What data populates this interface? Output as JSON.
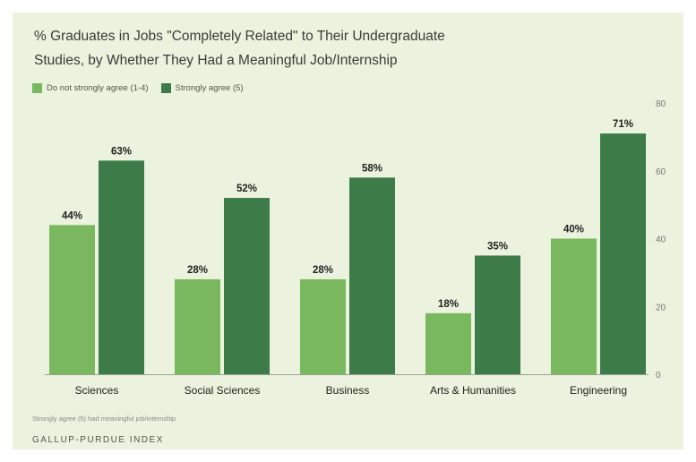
{
  "chart_data": {
    "type": "bar",
    "title_line1": "% Graduates in Jobs \"Completely Related\" to Their Undergraduate",
    "title_line2": "Studies, by Whether They Had a Meaningful Job/Internship",
    "categories": [
      "Sciences",
      "Social Sciences",
      "Business",
      "Arts & Humanities",
      "Engineering"
    ],
    "series": [
      {
        "name": "Do not strongly agree (1-4)",
        "values": [
          44,
          28,
          28,
          18,
          40
        ],
        "color": "#79b85f"
      },
      {
        "name": "Strongly agree (5)",
        "values": [
          63,
          52,
          58,
          35,
          71
        ],
        "color": "#3d7c49"
      }
    ],
    "value_format": "percent",
    "ylim": [
      0,
      80
    ],
    "yticks": [
      0,
      20,
      40,
      60,
      80
    ],
    "y_axis_side": "right",
    "grid": false,
    "legend_position": "top-left",
    "footnote": "Strongly agree (5) had meaningful job/internship",
    "source": "GALLUP-PURDUE INDEX"
  }
}
